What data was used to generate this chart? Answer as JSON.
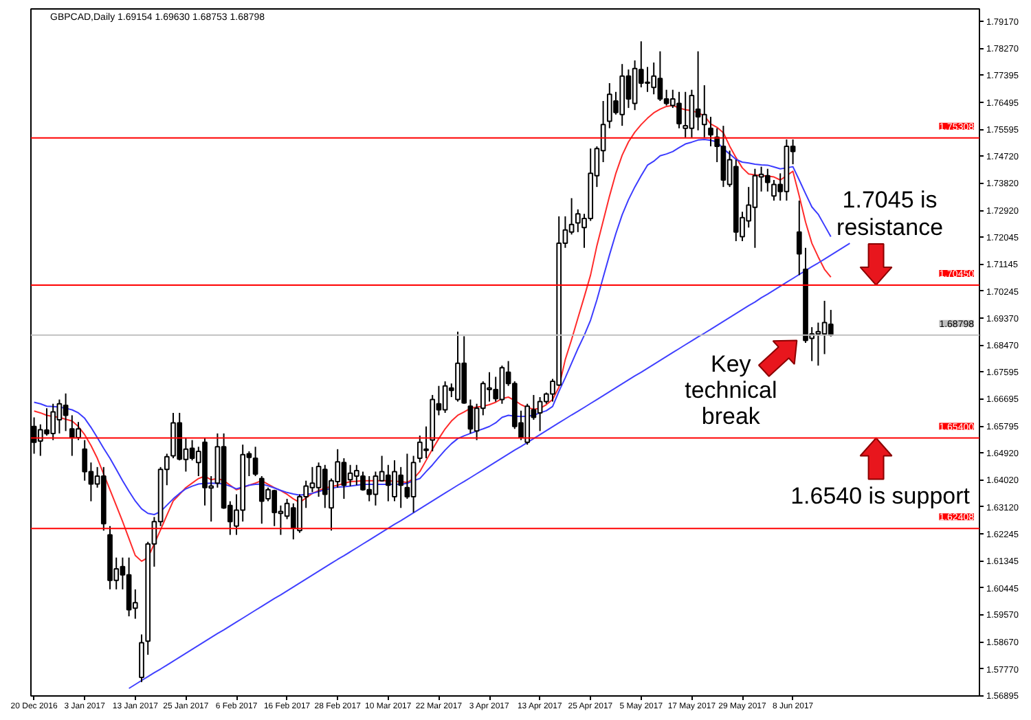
{
  "chart_data": {
    "type": "candlestick",
    "title": "GBPCAD,Daily 1.69154 1.69630 1.68753 1.68798",
    "color": "#000000",
    "categories": [
      "20 Dec 2016",
      null,
      null,
      null,
      null,
      null,
      null,
      null,
      "3 Jan 2017",
      null,
      null,
      null,
      null,
      null,
      null,
      null,
      "13 Jan 2017",
      null,
      null,
      null,
      null,
      null,
      null,
      null,
      "25 Jan 2017",
      null,
      null,
      null,
      null,
      null,
      null,
      null,
      "6 Feb 2017",
      null,
      null,
      null,
      null,
      null,
      null,
      null,
      "16 Feb 2017",
      null,
      null,
      null,
      null,
      null,
      null,
      null,
      "28 Feb 2017",
      null,
      null,
      null,
      null,
      null,
      null,
      null,
      "10 Mar 2017",
      null,
      null,
      null,
      null,
      null,
      null,
      null,
      "22 Mar 2017",
      null,
      null,
      null,
      null,
      null,
      null,
      null,
      "3 Apr 2017",
      null,
      null,
      null,
      null,
      null,
      null,
      null,
      "13 Apr 2017",
      null,
      null,
      null,
      null,
      null,
      null,
      null,
      "25 Apr 2017",
      null,
      null,
      null,
      null,
      null,
      null,
      null,
      "5 May 2017",
      null,
      null,
      null,
      null,
      null,
      null,
      null,
      "17 May 2017",
      null,
      null,
      null,
      null,
      null,
      null,
      null,
      "29 May 2017",
      null,
      null,
      null,
      null,
      null,
      null,
      null,
      "8 Jun 2017",
      null,
      null,
      null,
      null,
      null,
      null,
      null,
      null,
      null,
      null,
      null,
      null,
      null,
      null,
      null,
      null,
      null,
      null,
      null,
      null,
      null,
      null,
      null,
      null,
      null,
      null,
      null,
      null,
      null
    ],
    "ohlc": [
      [
        1.6578,
        1.6608,
        1.6488,
        1.6526
      ],
      [
        1.653,
        1.6585,
        1.6481,
        1.6567
      ],
      [
        1.6566,
        1.6638,
        1.6548,
        1.6554
      ],
      [
        1.6555,
        1.6653,
        1.6533,
        1.6626
      ],
      [
        1.66,
        1.6667,
        1.6555,
        1.6653
      ],
      [
        1.6648,
        1.6687,
        1.6563,
        1.6615
      ],
      [
        1.657,
        1.6615,
        1.6481,
        1.6541
      ],
      [
        1.6541,
        1.6593,
        1.6533,
        1.657
      ],
      [
        1.6503,
        1.6533,
        1.6399,
        1.6429
      ],
      [
        1.6429,
        1.6459,
        1.6331,
        1.6388
      ],
      [
        1.6388,
        1.6444,
        1.6376,
        1.6414
      ],
      [
        1.6414,
        1.6444,
        1.6234,
        1.6257
      ],
      [
        1.622,
        1.6249,
        1.604,
        1.607
      ],
      [
        1.607,
        1.6145,
        1.604,
        1.6108
      ],
      [
        1.6115,
        1.6145,
        1.604,
        1.6088
      ],
      [
        1.6088,
        1.6145,
        1.5951,
        1.5973
      ],
      [
        1.5978,
        1.604,
        1.5943,
        1.5996
      ],
      [
        1.5749,
        1.5891,
        1.5734,
        1.5864
      ],
      [
        1.5869,
        1.6197,
        1.5824,
        1.619
      ],
      [
        1.619,
        1.6279,
        1.6115,
        1.6264
      ],
      [
        1.6264,
        1.6444,
        1.6249,
        1.6436
      ],
      [
        1.6436,
        1.6488,
        1.6384,
        1.6478
      ],
      [
        1.6481,
        1.6623,
        1.6473,
        1.659
      ],
      [
        1.659,
        1.6623,
        1.6466,
        1.647
      ],
      [
        1.6469,
        1.6541,
        1.6429,
        1.6503
      ],
      [
        1.6506,
        1.6533,
        1.6466,
        1.6473
      ],
      [
        1.6459,
        1.6511,
        1.6414,
        1.6496
      ],
      [
        1.6526,
        1.6541,
        1.6317,
        1.6376
      ],
      [
        1.6375,
        1.6414,
        1.6264,
        1.6381
      ],
      [
        1.6391,
        1.6555,
        1.6376,
        1.6511
      ],
      [
        1.6511,
        1.6555,
        1.6306,
        1.6309
      ],
      [
        1.6317,
        1.6331,
        1.622,
        1.6264
      ],
      [
        1.6249,
        1.6354,
        1.622,
        1.6302
      ],
      [
        1.6302,
        1.6518,
        1.6264,
        1.6485
      ],
      [
        1.6488,
        1.6496,
        1.6414,
        1.6476
      ],
      [
        1.6473,
        1.6511,
        1.6414,
        1.6421
      ],
      [
        1.6406,
        1.6414,
        1.6257,
        1.6331
      ],
      [
        1.6339,
        1.6376,
        1.6331,
        1.6369
      ],
      [
        1.6366,
        1.6369,
        1.6249,
        1.6294
      ],
      [
        1.6291,
        1.6317,
        1.622,
        1.6297
      ],
      [
        1.6282,
        1.6339,
        1.6272,
        1.6324
      ],
      [
        1.6309,
        1.6324,
        1.6205,
        1.6242
      ],
      [
        1.6234,
        1.6354,
        1.6227,
        1.6346
      ],
      [
        1.6346,
        1.6399,
        1.6309,
        1.6381
      ],
      [
        1.6376,
        1.6444,
        1.6361,
        1.6391
      ],
      [
        1.6376,
        1.6459,
        1.6346,
        1.6446
      ],
      [
        1.6436,
        1.6451,
        1.6309,
        1.6354
      ],
      [
        1.6309,
        1.6406,
        1.6234,
        1.6399
      ],
      [
        1.6396,
        1.6503,
        1.6376,
        1.6461
      ],
      [
        1.6459,
        1.6473,
        1.6339,
        1.6384
      ],
      [
        1.6402,
        1.6451,
        1.6381,
        1.6424
      ],
      [
        1.6414,
        1.6451,
        1.6384,
        1.6432
      ],
      [
        1.6414,
        1.6429,
        1.6366,
        1.6369
      ],
      [
        1.6369,
        1.6414,
        1.6331,
        1.6354
      ],
      [
        1.6354,
        1.6429,
        1.6317,
        1.6414
      ],
      [
        1.6399,
        1.6481,
        1.6396,
        1.6429
      ],
      [
        1.6417,
        1.6451,
        1.6331,
        1.6384
      ],
      [
        1.6346,
        1.6466,
        1.6331,
        1.6429
      ],
      [
        1.6417,
        1.6444,
        1.6309,
        1.6384
      ],
      [
        1.6376,
        1.6488,
        1.6339,
        1.6346
      ],
      [
        1.6346,
        1.6481,
        1.6294,
        1.6459
      ],
      [
        1.6473,
        1.6548,
        1.6459,
        1.6526
      ],
      [
        1.6499,
        1.6578,
        1.6473,
        1.6503
      ],
      [
        1.6533,
        1.6682,
        1.6496,
        1.6667
      ],
      [
        1.6653,
        1.6712,
        1.6615,
        1.6633
      ],
      [
        1.6633,
        1.6727,
        1.6623,
        1.6712
      ],
      [
        1.6705,
        1.672,
        1.6675,
        1.6697
      ],
      [
        1.6667,
        1.6891,
        1.666,
        1.6787
      ],
      [
        1.6787,
        1.6876,
        1.6653,
        1.6656
      ],
      [
        1.6645,
        1.6667,
        1.6555,
        1.657
      ],
      [
        1.6563,
        1.6653,
        1.6533,
        1.6638
      ],
      [
        1.6638,
        1.6727,
        1.6615,
        1.672
      ],
      [
        1.67,
        1.6757,
        1.666,
        1.6705
      ],
      [
        1.67,
        1.6742,
        1.666,
        1.667
      ],
      [
        1.6667,
        1.6779,
        1.6653,
        1.6772
      ],
      [
        1.6757,
        1.6794,
        1.6712,
        1.672
      ],
      [
        1.672,
        1.6727,
        1.657,
        1.6578
      ],
      [
        1.659,
        1.663,
        1.6533,
        1.6541
      ],
      [
        1.6526,
        1.6653,
        1.6518,
        1.6645
      ],
      [
        1.6633,
        1.6682,
        1.66,
        1.6608
      ],
      [
        1.6623,
        1.6675,
        1.6563,
        1.666
      ],
      [
        1.666,
        1.669,
        1.6653,
        1.6685
      ],
      [
        1.6685,
        1.6735,
        1.666,
        1.6727
      ],
      [
        1.6715,
        1.7272,
        1.6712,
        1.7183
      ],
      [
        1.7183,
        1.7272,
        1.7168,
        1.7227
      ],
      [
        1.722,
        1.7332,
        1.7212,
        1.7245
      ],
      [
        1.725,
        1.7295,
        1.722,
        1.728
      ],
      [
        1.7235,
        1.728,
        1.7168,
        1.7265
      ],
      [
        1.7265,
        1.7496,
        1.7257,
        1.7414
      ],
      [
        1.7406,
        1.7503,
        1.7369,
        1.7496
      ],
      [
        1.7489,
        1.7653,
        1.7451,
        1.7575
      ],
      [
        1.7586,
        1.7712,
        1.7563,
        1.7675
      ],
      [
        1.7653,
        1.7683,
        1.7608,
        1.7615
      ],
      [
        1.7608,
        1.7775,
        1.7571,
        1.7735
      ],
      [
        1.7735,
        1.7757,
        1.763,
        1.766
      ],
      [
        1.7645,
        1.7787,
        1.7623,
        1.776
      ],
      [
        1.7757,
        1.785,
        1.7698,
        1.7712
      ],
      [
        1.7715,
        1.7765,
        1.7683,
        1.7712
      ],
      [
        1.7698,
        1.778,
        1.7675,
        1.7735
      ],
      [
        1.7727,
        1.7817,
        1.7653,
        1.766
      ],
      [
        1.766,
        1.769,
        1.7638,
        1.7645
      ],
      [
        1.7638,
        1.769,
        1.763,
        1.766
      ],
      [
        1.7645,
        1.7683,
        1.7563,
        1.7578
      ],
      [
        1.7563,
        1.7683,
        1.7533,
        1.7571
      ],
      [
        1.7563,
        1.769,
        1.7533,
        1.7671
      ],
      [
        1.7626,
        1.7817,
        1.7556,
        1.7601
      ],
      [
        1.7575,
        1.7705,
        1.7533,
        1.7608
      ],
      [
        1.7563,
        1.7601,
        1.7503,
        1.7541
      ],
      [
        1.7533,
        1.7563,
        1.7451,
        1.7503
      ],
      [
        1.7503,
        1.7571,
        1.7369,
        1.7392
      ],
      [
        1.7377,
        1.7489,
        1.7369,
        1.7459
      ],
      [
        1.7436,
        1.7459,
        1.719,
        1.722
      ],
      [
        1.7205,
        1.7287,
        1.719,
        1.7268
      ],
      [
        1.7257,
        1.7369,
        1.7235,
        1.7309
      ],
      [
        1.7302,
        1.7429,
        1.7168,
        1.7406
      ],
      [
        1.7402,
        1.7436,
        1.7354,
        1.7411
      ],
      [
        1.7406,
        1.7429,
        1.7354,
        1.7384
      ],
      [
        1.7339,
        1.7392,
        1.7324,
        1.7377
      ],
      [
        1.7377,
        1.7414,
        1.7324,
        1.7354
      ],
      [
        1.7354,
        1.7526,
        1.7324,
        1.7503
      ],
      [
        1.7503,
        1.7526,
        1.7444,
        1.7486
      ],
      [
        1.722,
        1.7324,
        1.7078,
        1.7148
      ],
      [
        1.7097,
        1.7168,
        1.6854,
        1.6862
      ],
      [
        1.6869,
        1.6906,
        1.6794,
        1.6884
      ],
      [
        1.6884,
        1.6921,
        1.6779,
        1.6891
      ],
      [
        1.6884,
        1.6993,
        1.6817,
        1.6921
      ],
      [
        1.69154,
        1.6963,
        1.68753,
        1.68798
      ],
      null,
      null,
      null,
      null,
      null,
      null,
      null,
      null,
      null,
      null,
      null,
      null,
      null,
      null,
      null,
      null,
      null,
      null,
      null,
      null,
      null,
      null,
      null
    ],
    "series": [
      {
        "type": "line",
        "color": "#ff2a2a",
        "values": [
          1.6629,
          1.6623,
          1.6615,
          1.6611,
          1.6608,
          1.6602,
          1.6596,
          1.6578,
          1.6551,
          1.6515,
          1.6473,
          1.6421,
          1.6369,
          1.6317,
          1.6264,
          1.6208,
          1.6152,
          1.6133,
          1.6145,
          1.619,
          1.6237,
          1.6285,
          1.6332,
          1.6354,
          1.6376,
          1.6391,
          1.6406,
          1.6414,
          1.6402,
          1.6406,
          1.6399,
          1.6384,
          1.6369,
          1.6376,
          1.6384,
          1.6391,
          1.6399,
          1.6387,
          1.6376,
          1.6366,
          1.6354,
          1.6339,
          1.6327,
          1.6342,
          1.6357,
          1.6366,
          1.6375,
          1.6379,
          1.6384,
          1.639,
          1.6396,
          1.6397,
          1.6399,
          1.6399,
          1.6399,
          1.6399,
          1.6399,
          1.6397,
          1.6396,
          1.6393,
          1.6406,
          1.6429,
          1.6466,
          1.6503,
          1.6538,
          1.657,
          1.6596,
          1.6615,
          1.6626,
          1.6638,
          1.6642,
          1.6645,
          1.665,
          1.6658,
          1.667,
          1.6675,
          1.6664,
          1.665,
          1.6641,
          1.6635,
          1.6638,
          1.665,
          1.6667,
          1.6708,
          1.6799,
          1.6865,
          1.6936,
          1.7006,
          1.7078,
          1.7175,
          1.7257,
          1.7339,
          1.7414,
          1.7474,
          1.7518,
          1.755,
          1.7575,
          1.7596,
          1.7614,
          1.7626,
          1.7635,
          1.7638,
          1.763,
          1.7624,
          1.7621,
          1.7614,
          1.7604,
          1.7577,
          1.7566,
          1.7548,
          1.7504,
          1.7466,
          1.7432,
          1.7412,
          1.7409,
          1.7406,
          1.7405,
          1.7402,
          1.7392,
          1.7406,
          1.7421,
          1.7339,
          1.7253,
          1.7183,
          1.7138,
          1.7097,
          1.7071,
          null,
          null,
          null,
          null,
          null,
          null,
          null,
          null,
          null,
          null,
          null,
          null,
          null,
          null,
          null,
          null,
          null,
          null,
          null,
          null,
          null,
          null,
          null
        ]
      },
      {
        "type": "line",
        "color": "#3b3bff",
        "values": [
          1.6658,
          1.6653,
          1.6645,
          1.6644,
          1.6642,
          1.6638,
          1.6633,
          1.6623,
          1.6605,
          1.6575,
          1.6541,
          1.6506,
          1.6473,
          1.6436,
          1.6399,
          1.6364,
          1.6332,
          1.6306,
          1.6291,
          1.6287,
          1.6297,
          1.6318,
          1.6339,
          1.6357,
          1.6372,
          1.6381,
          1.6388,
          1.639,
          1.6391,
          1.639,
          1.6388,
          1.6381,
          1.6372,
          1.6378,
          1.6384,
          1.6387,
          1.6388,
          1.6382,
          1.6375,
          1.6367,
          1.636,
          1.6355,
          1.6351,
          1.6354,
          1.6357,
          1.6363,
          1.6369,
          1.6373,
          1.6378,
          1.6379,
          1.6381,
          1.6384,
          1.6387,
          1.6387,
          1.6387,
          1.6387,
          1.6387,
          1.6387,
          1.6387,
          1.639,
          1.6399,
          1.6406,
          1.6429,
          1.6451,
          1.6476,
          1.65,
          1.6521,
          1.6538,
          1.6547,
          1.6555,
          1.6563,
          1.657,
          1.6578,
          1.659,
          1.6608,
          1.6615,
          1.6612,
          1.6611,
          1.6612,
          1.6615,
          1.6623,
          1.663,
          1.6644,
          1.6694,
          1.6739,
          1.6787,
          1.6835,
          1.6879,
          1.6929,
          1.6996,
          1.7071,
          1.7145,
          1.7215,
          1.7277,
          1.7327,
          1.7369,
          1.7406,
          1.7441,
          1.7454,
          1.7472,
          1.7478,
          1.7486,
          1.7499,
          1.7511,
          1.7517,
          1.7524,
          1.7526,
          1.7523,
          1.7518,
          1.7495,
          1.7478,
          1.746,
          1.7451,
          1.7448,
          1.7444,
          1.7442,
          1.7441,
          1.7435,
          1.7429,
          1.7432,
          1.7436,
          1.7392,
          1.7347,
          1.7303,
          1.7279,
          1.7242,
          1.7205,
          null,
          null,
          null,
          null,
          null,
          null,
          null,
          null,
          null,
          null,
          null,
          null,
          null,
          null,
          null,
          null,
          null,
          null,
          null,
          null,
          null,
          null,
          null
        ]
      },
      {
        "type": "line",
        "color": "#4040ff",
        "values": [
          null,
          null,
          null,
          null,
          null,
          null,
          null,
          null,
          null,
          null,
          null,
          null,
          null,
          null,
          null,
          1.5713,
          1.5726,
          1.5739,
          1.5752,
          1.5765,
          1.5777,
          1.579,
          1.5803,
          1.5816,
          1.5829,
          1.5842,
          1.5855,
          1.5868,
          1.5881,
          1.5894,
          1.5906,
          1.5919,
          1.5932,
          1.5945,
          1.5958,
          1.5971,
          1.5984,
          1.5997,
          1.601,
          1.6022,
          1.6035,
          1.6048,
          1.6061,
          1.6074,
          1.6087,
          1.61,
          1.6113,
          1.6126,
          1.6139,
          1.6151,
          1.6164,
          1.6177,
          1.619,
          1.6203,
          1.6216,
          1.6229,
          1.6242,
          1.6255,
          1.6267,
          1.628,
          1.6293,
          1.6306,
          1.6319,
          1.6332,
          1.6345,
          1.6358,
          1.6371,
          1.6384,
          1.6396,
          1.6409,
          1.6422,
          1.6435,
          1.6448,
          1.6461,
          1.6474,
          1.6487,
          1.65,
          1.6512,
          1.6525,
          1.6538,
          1.6551,
          1.6564,
          1.6577,
          1.659,
          1.6603,
          1.6616,
          1.6628,
          1.6641,
          1.6654,
          1.6667,
          1.668,
          1.6693,
          1.6706,
          1.6719,
          1.6732,
          1.6745,
          1.6757,
          1.677,
          1.6783,
          1.6796,
          1.6809,
          1.6822,
          1.6835,
          1.6848,
          1.6861,
          1.6874,
          1.6886,
          1.6899,
          1.6912,
          1.6925,
          1.6938,
          1.6951,
          1.6964,
          1.6977,
          1.6989,
          1.7003,
          1.7015,
          1.7028,
          1.7041,
          1.7054,
          1.7067,
          1.708,
          1.7093,
          1.7106,
          1.7118,
          1.7131,
          1.7144,
          1.7157,
          1.717,
          1.7183,
          null,
          null,
          null,
          null,
          null,
          null,
          null,
          null,
          null,
          null,
          null,
          null,
          null,
          null,
          null,
          null,
          null,
          null,
          null,
          null
        ]
      }
    ],
    "ylim": [
      1.5688,
      1.7957
    ],
    "yticks": [
      {
        "value": 1.7917,
        "label": "1.79170"
      },
      {
        "value": 1.7827,
        "label": "1.78270"
      },
      1.77395,
      1.76495,
      1.75595,
      {
        "value": 1.7472,
        "label": "1.74720"
      },
      {
        "value": 1.7382,
        "label": "1.73820"
      },
      {
        "value": 1.7292,
        "label": "1.72920"
      },
      1.72045,
      1.71145,
      1.70245,
      {
        "value": 1.6937,
        "label": "1.69370"
      },
      {
        "value": 1.6847,
        "label": "1.68470"
      },
      1.67595,
      1.66695,
      1.65795,
      {
        "value": 1.6492,
        "label": "1.64920"
      },
      {
        "value": 1.6402,
        "label": "1.64020"
      },
      {
        "value": 1.6312,
        "label": "1.63120"
      },
      1.62245,
      1.61345,
      1.60445,
      {
        "value": 1.5957,
        "label": "1.59570"
      },
      {
        "value": 1.5867,
        "label": "1.58670"
      },
      {
        "value": 1.5777,
        "label": "1.57770"
      },
      1.56895
    ],
    "ref_lines": [
      {
        "axis": "y",
        "value": 1.75308,
        "label": "1.75308",
        "color": "#ff0000"
      },
      {
        "axis": "y",
        "value": 1.7045,
        "label": "1.70450",
        "color": "#ff0000"
      },
      {
        "axis": "y",
        "value": 1.654,
        "label": "1.65400",
        "color": "#ff0000"
      },
      {
        "axis": "y",
        "value": 1.62408,
        "label": "1.62408",
        "color": "#ff0000"
      },
      {
        "axis": "y",
        "value": 1.68798,
        "label": "1.68798",
        "color": "#c0c0c0"
      }
    ],
    "annotations": [
      {
        "text": "1.7045 is\nresistance",
        "y": 1.7045
      },
      {
        "text": "Key\ntechnical\nbreak",
        "y": 1.6862
      },
      {
        "text": "1.6540 is support",
        "y": 1.654
      }
    ]
  }
}
